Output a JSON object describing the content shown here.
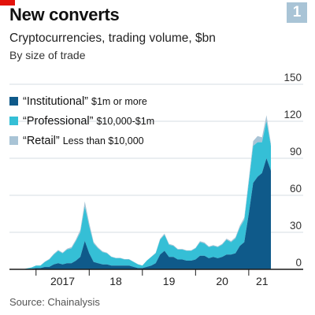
{
  "header": {
    "title": "New converts",
    "badge": "1",
    "subtitle": "Cryptocurrencies, trading volume, $bn",
    "subsubtitle": "By size of trade"
  },
  "source": "Source: Chainalysis",
  "colors": {
    "institutional": "#0f5a8a",
    "professional": "#35bfd6",
    "retail": "#a9c4d6",
    "axis": "#1a1a1a",
    "grid": "#d4dde3",
    "accent": "#e3120b"
  },
  "chart_data": {
    "type": "area",
    "stacked": true,
    "x_tick_labels": [
      "2017",
      "18",
      "19",
      "20",
      "21"
    ],
    "y_ticks": [
      "0",
      "30",
      "60",
      "90",
      "120",
      "150"
    ],
    "ylim": [
      0,
      150
    ],
    "grid": true,
    "legend_position": "top-left",
    "legend": [
      {
        "name": "“Institutional”",
        "desc": "$1m or more"
      },
      {
        "name": "“Professional”",
        "desc": "$10,000-$1m"
      },
      {
        "name": "“Retail”",
        "desc": "Less than $10,000"
      }
    ],
    "x": [
      "2016-07",
      "2016-08",
      "2016-09",
      "2016-10",
      "2016-11",
      "2016-12",
      "2017-01",
      "2017-02",
      "2017-03",
      "2017-04",
      "2017-05",
      "2017-06",
      "2017-07",
      "2017-08",
      "2017-09",
      "2017-10",
      "2017-11",
      "2017-12",
      "2018-01",
      "2018-02",
      "2018-03",
      "2018-04",
      "2018-05",
      "2018-06",
      "2018-07",
      "2018-08",
      "2018-09",
      "2018-10",
      "2018-11",
      "2018-12",
      "2019-01",
      "2019-02",
      "2019-03",
      "2019-04",
      "2019-05",
      "2019-06",
      "2019-07",
      "2019-08",
      "2019-09",
      "2019-10",
      "2019-11",
      "2019-12",
      "2020-01",
      "2020-02",
      "2020-03",
      "2020-04",
      "2020-05",
      "2020-06",
      "2020-07",
      "2020-08",
      "2020-09",
      "2020-10",
      "2020-11",
      "2020-12",
      "2021-01",
      "2021-02",
      "2021-03",
      "2021-04",
      "2021-05",
      "2021-06"
    ],
    "series": [
      {
        "name": "“Institutional”",
        "values": [
          0,
          0,
          0,
          0,
          0.3,
          0.5,
          1,
          1,
          2,
          2,
          4,
          5,
          4,
          5,
          5,
          7,
          10,
          23,
          13,
          6,
          5,
          4,
          4,
          3,
          3,
          3,
          3,
          3,
          2,
          1,
          1,
          2,
          3,
          5,
          12,
          15,
          10,
          10,
          8,
          8,
          7,
          7,
          8,
          11,
          11,
          9,
          10,
          9,
          10,
          12,
          12,
          13,
          19,
          22,
          45,
          70,
          75,
          78,
          90,
          80
        ]
      },
      {
        "name": "“Professional”",
        "values": [
          0,
          0,
          0,
          0,
          0.5,
          1,
          2,
          2,
          4,
          6,
          8,
          10,
          9,
          11,
          12,
          16,
          20,
          28,
          22,
          15,
          12,
          10,
          9,
          7,
          6,
          6,
          5,
          5,
          4,
          3,
          2,
          5,
          7,
          8,
          12,
          13,
          10,
          9,
          8,
          8,
          8,
          8,
          9,
          11,
          10,
          9,
          9,
          9,
          10,
          12,
          10,
          12,
          15,
          18,
          25,
          30,
          28,
          25,
          30,
          20
        ]
      },
      {
        "name": "“Retail”",
        "values": [
          0,
          0,
          0,
          0,
          0.1,
          0.1,
          0.2,
          0.2,
          0.3,
          0.5,
          0.6,
          0.7,
          0.6,
          0.8,
          1,
          1.2,
          2,
          4,
          2.5,
          1.2,
          0.8,
          0.6,
          0.5,
          0.4,
          0.3,
          0.3,
          0.3,
          0.3,
          0.2,
          0.2,
          0.2,
          0.2,
          0.3,
          0.5,
          0.8,
          1,
          0.7,
          0.6,
          0.5,
          0.5,
          0.4,
          0.4,
          0.5,
          0.8,
          0.8,
          0.6,
          0.6,
          0.6,
          0.7,
          0.9,
          0.9,
          1,
          1.5,
          2,
          3,
          4,
          5,
          4,
          5,
          2
        ]
      }
    ]
  }
}
